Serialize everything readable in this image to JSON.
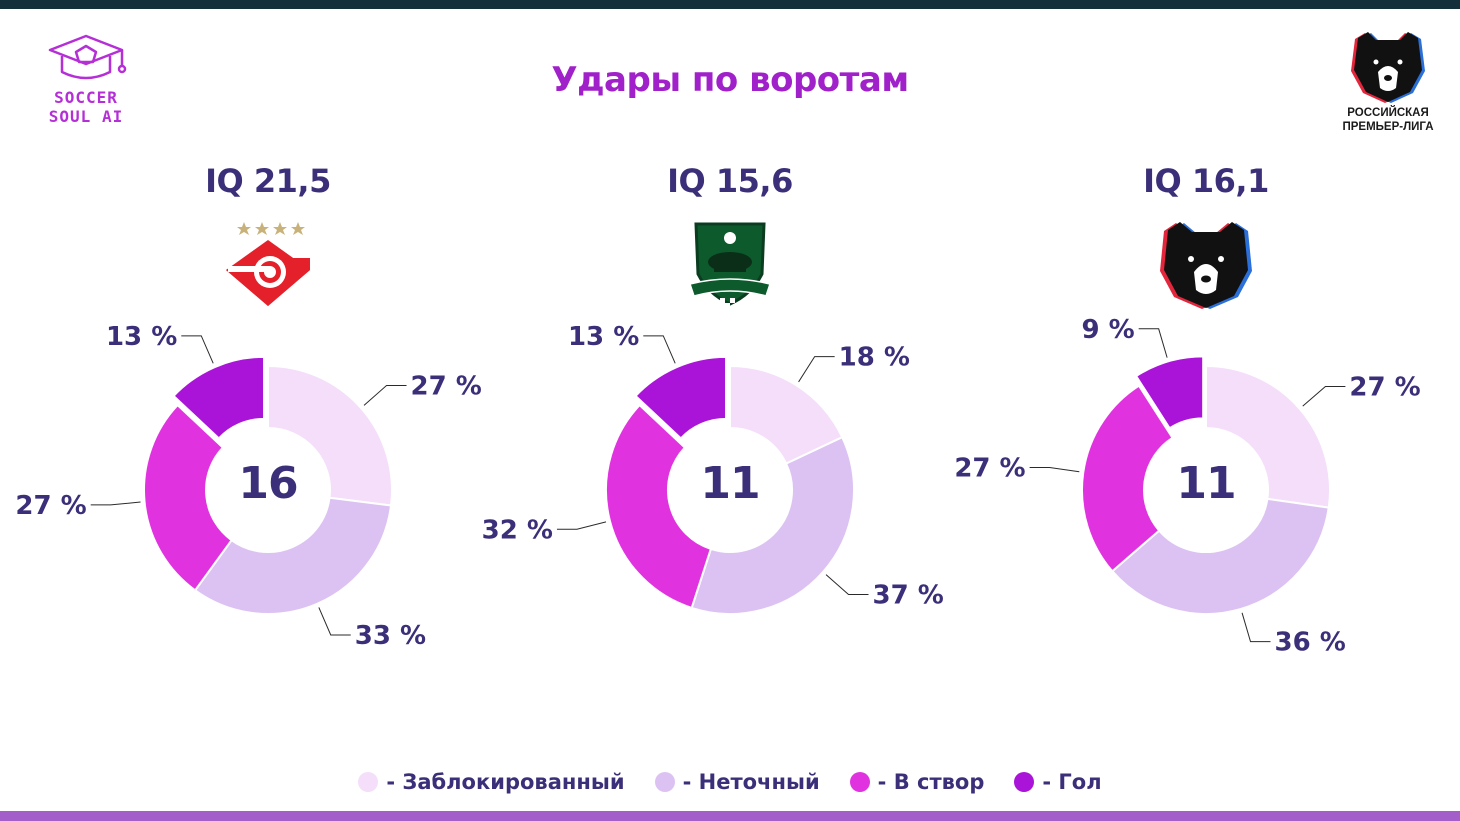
{
  "colors": {
    "top_bar": "#13303a",
    "bottom_bar": "#a35ec9",
    "title": "#a020c9",
    "text_dark": "#3a2f78",
    "blocked": "#f4defa",
    "missed": "#dcc2f2",
    "on_target": "#e033df",
    "goal": "#a914d8",
    "leader_line": "#2a2a2a"
  },
  "branding": {
    "left_logo_line1": "SOCCER",
    "left_logo_line2": "SOUL AI",
    "right_logo_line1": "РОССИЙСКАЯ",
    "right_logo_line2": "ПРЕМЬЕР-ЛИГА"
  },
  "title": "Удары по воротам",
  "chart_data": [
    {
      "type": "pie",
      "subtitle": "IQ 21,5",
      "center_label": "16",
      "club_icon": "spartak-logo-icon",
      "categories": [
        "Заблокированный",
        "Неточный",
        "В створ",
        "Гол"
      ],
      "values": [
        27,
        33,
        27,
        13
      ],
      "labels": [
        "27 %",
        "33 %",
        "27 %",
        "13 %"
      ]
    },
    {
      "type": "pie",
      "subtitle": "IQ 15,6",
      "center_label": "11",
      "club_icon": "krasnodar-logo-icon",
      "categories": [
        "Заблокированный",
        "Неточный",
        "В створ",
        "Гол"
      ],
      "values": [
        18,
        37,
        32,
        13
      ],
      "labels": [
        "18 %",
        "37 %",
        "32 %",
        "13 %"
      ]
    },
    {
      "type": "pie",
      "subtitle": "IQ 16,1",
      "center_label": "11",
      "club_icon": "rpl-bear-logo-icon",
      "categories": [
        "Заблокированный",
        "Неточный",
        "В створ",
        "Гол"
      ],
      "values": [
        27,
        36,
        27,
        9
      ],
      "labels": [
        "27 %",
        "36 %",
        "27 %",
        "9 %"
      ]
    }
  ],
  "legend": [
    {
      "label": "- Заблокированный",
      "color": "#f4defa"
    },
    {
      "label": "- Неточный",
      "color": "#dcc2f2"
    },
    {
      "label": "- В створ",
      "color": "#e033df"
    },
    {
      "label": "- Гол",
      "color": "#a914d8"
    }
  ]
}
